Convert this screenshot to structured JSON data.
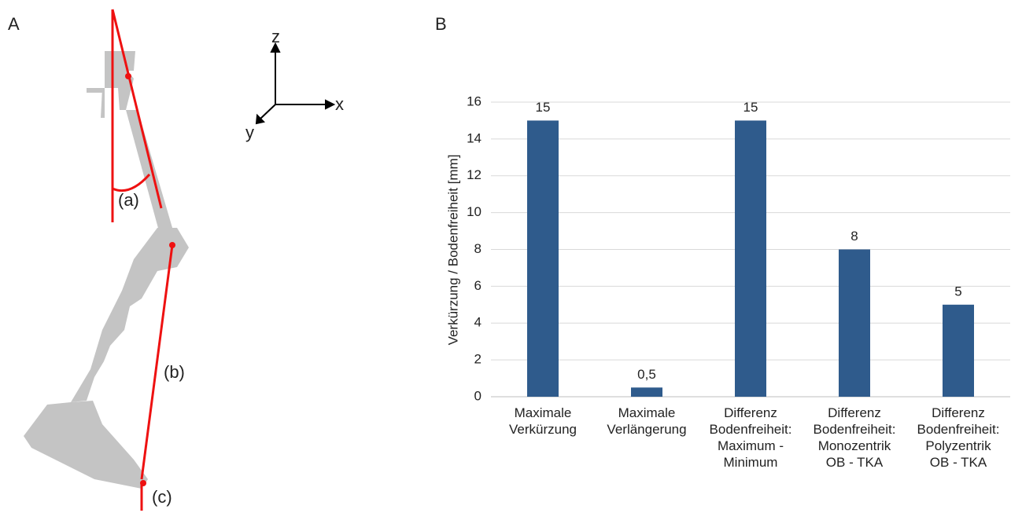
{
  "panel_a": {
    "label": "A",
    "axis_labels": [
      "z",
      "x",
      "y"
    ],
    "annotations": [
      "(a)",
      "(b)",
      "(c)"
    ]
  },
  "panel_b": {
    "label": "B"
  },
  "chart_data": {
    "type": "bar",
    "ylabel": "Verkürzung / Bodenfreiheit [mm]",
    "categories": [
      "Maximale\nVerkürzung",
      "Maximale\nVerlängerung",
      "Differenz\nBodenfreiheit:\nMaximum -\nMinimum",
      "Differenz\nBodenfreiheit:\nMonozentrik\nOB - TKA",
      "Differenz\nBodenfreiheit:\nPolyzentrik\nOB - TKA"
    ],
    "values": [
      15,
      0.5,
      15,
      8,
      5
    ],
    "value_labels": [
      "15",
      "0,5",
      "15",
      "8",
      "5"
    ],
    "color": "#2f5b8c",
    "ylim": [
      0,
      16
    ],
    "yticks": [
      0,
      2,
      4,
      6,
      8,
      10,
      12,
      14,
      16
    ],
    "grid": true
  }
}
